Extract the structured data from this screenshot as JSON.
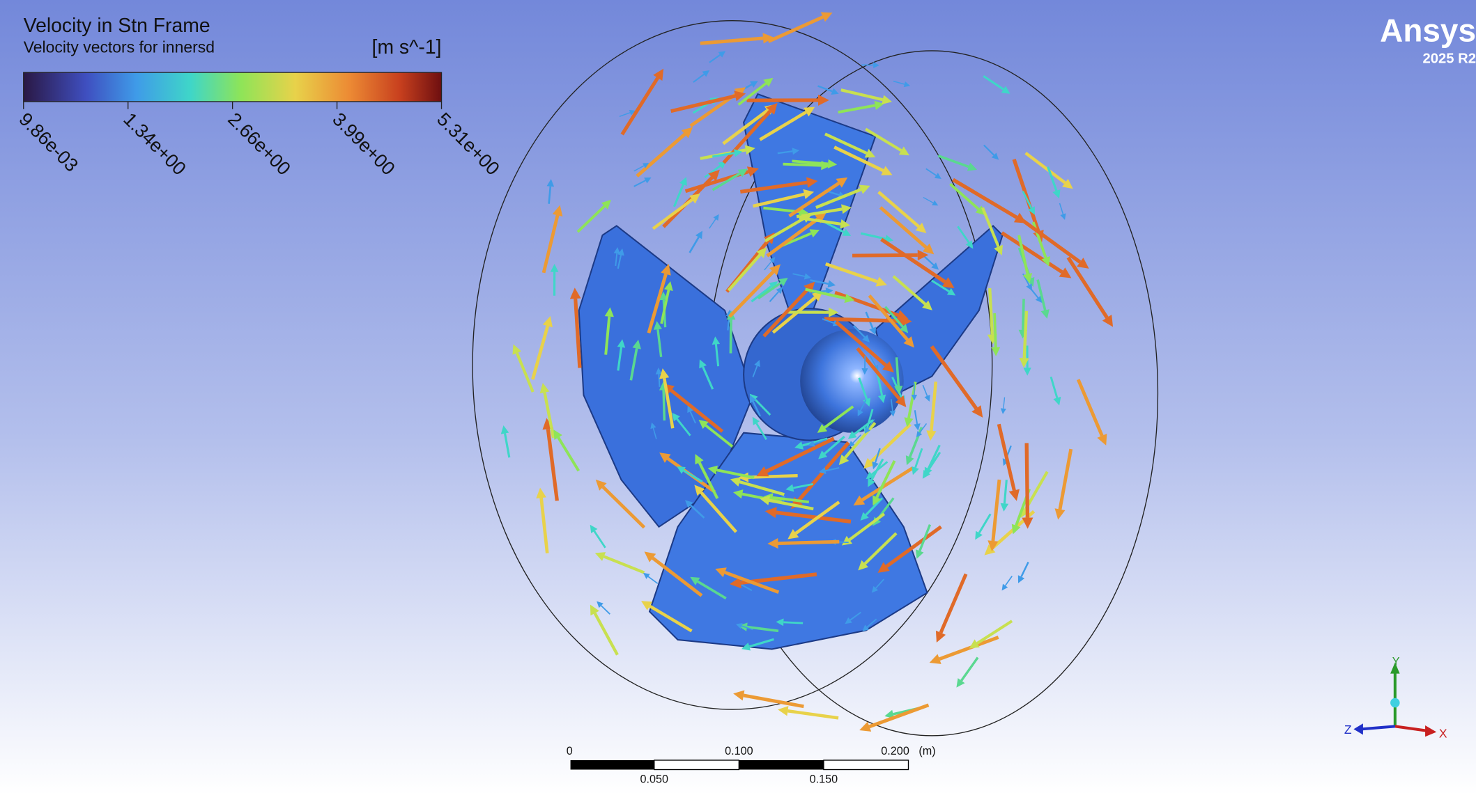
{
  "legend": {
    "title": "Velocity in Stn Frame",
    "subtitle": "Velocity vectors for innersd",
    "unit": "[m s^-1]",
    "ticks": [
      "9.86e-03",
      "1.34e+00",
      "2.66e+00",
      "3.99e+00",
      "5.31e+00"
    ]
  },
  "scale_bar": {
    "top_labels": [
      "0",
      "0.100",
      "0.200"
    ],
    "unit": "(m)",
    "bottom_labels": [
      "0.050",
      "0.150"
    ]
  },
  "logo": {
    "name": "Ansys",
    "version": "2025 R2"
  },
  "axes": {
    "labels": [
      "Y",
      "Z",
      "X"
    ]
  }
}
